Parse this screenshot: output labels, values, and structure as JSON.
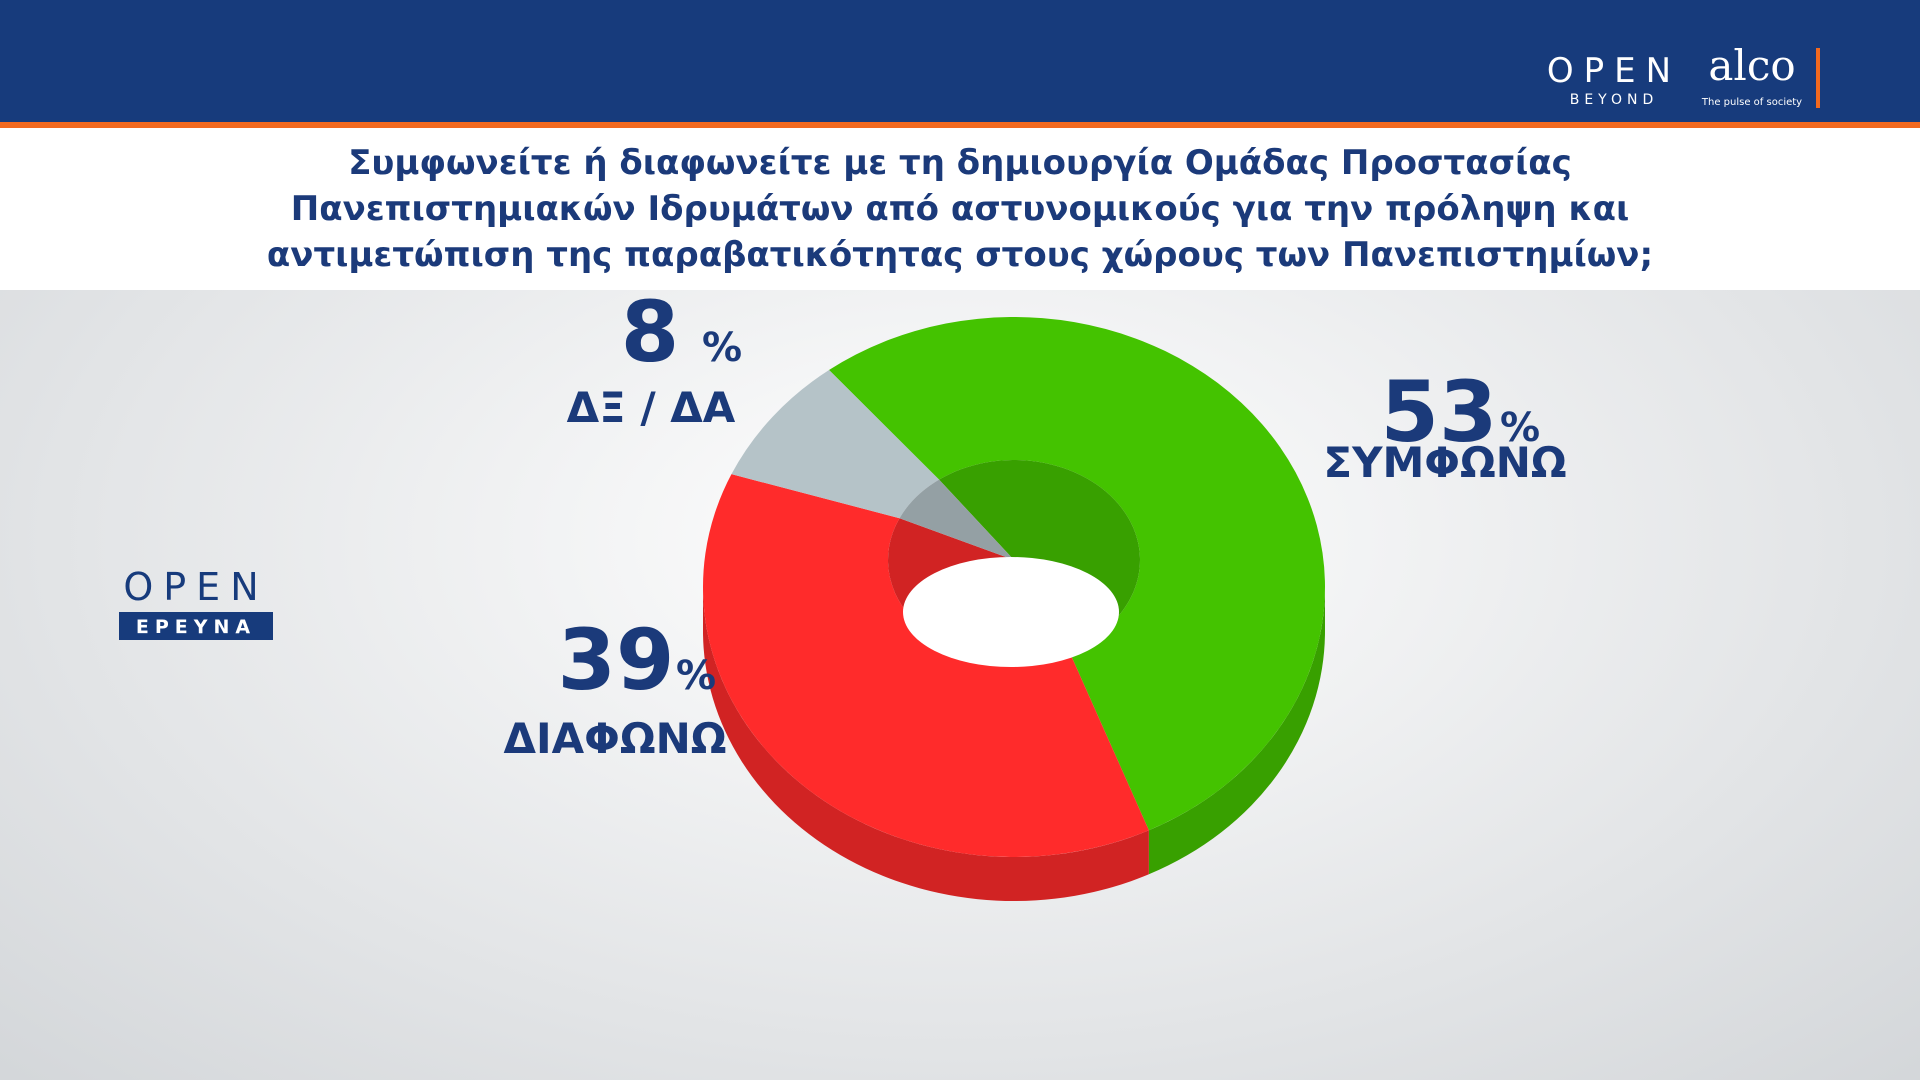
{
  "branding": {
    "top_logo": "OPEN",
    "top_logo_sub": "BEYOND",
    "partner": "alco",
    "partner_sub": "The pulse of society",
    "side_logo": "OPEN",
    "side_logo_sub": "ΕΡΕΥΝΑ"
  },
  "chart_data": {
    "type": "pie",
    "title": [
      "Συμφωνείτε ή διαφωνείτε με τη δημιουργία Ομάδας Προστασίας",
      "Πανεπιστημιακών Ιδρυμάτων από αστυνομικούς για την πρόληψη και",
      "αντιμετώπιση της παραβατικότητας στους χώρους των Πανεπιστημίων;"
    ],
    "categories": [
      "ΣΥΜΦΩΝΩ",
      "ΔΙΑΦΩΝΩ",
      "ΔΞ / ΔΑ"
    ],
    "values": [
      53,
      39,
      8
    ],
    "value_suffix": "%",
    "colors": [
      "#44c300",
      "#ff2b2b",
      "#b5c3c8"
    ]
  }
}
